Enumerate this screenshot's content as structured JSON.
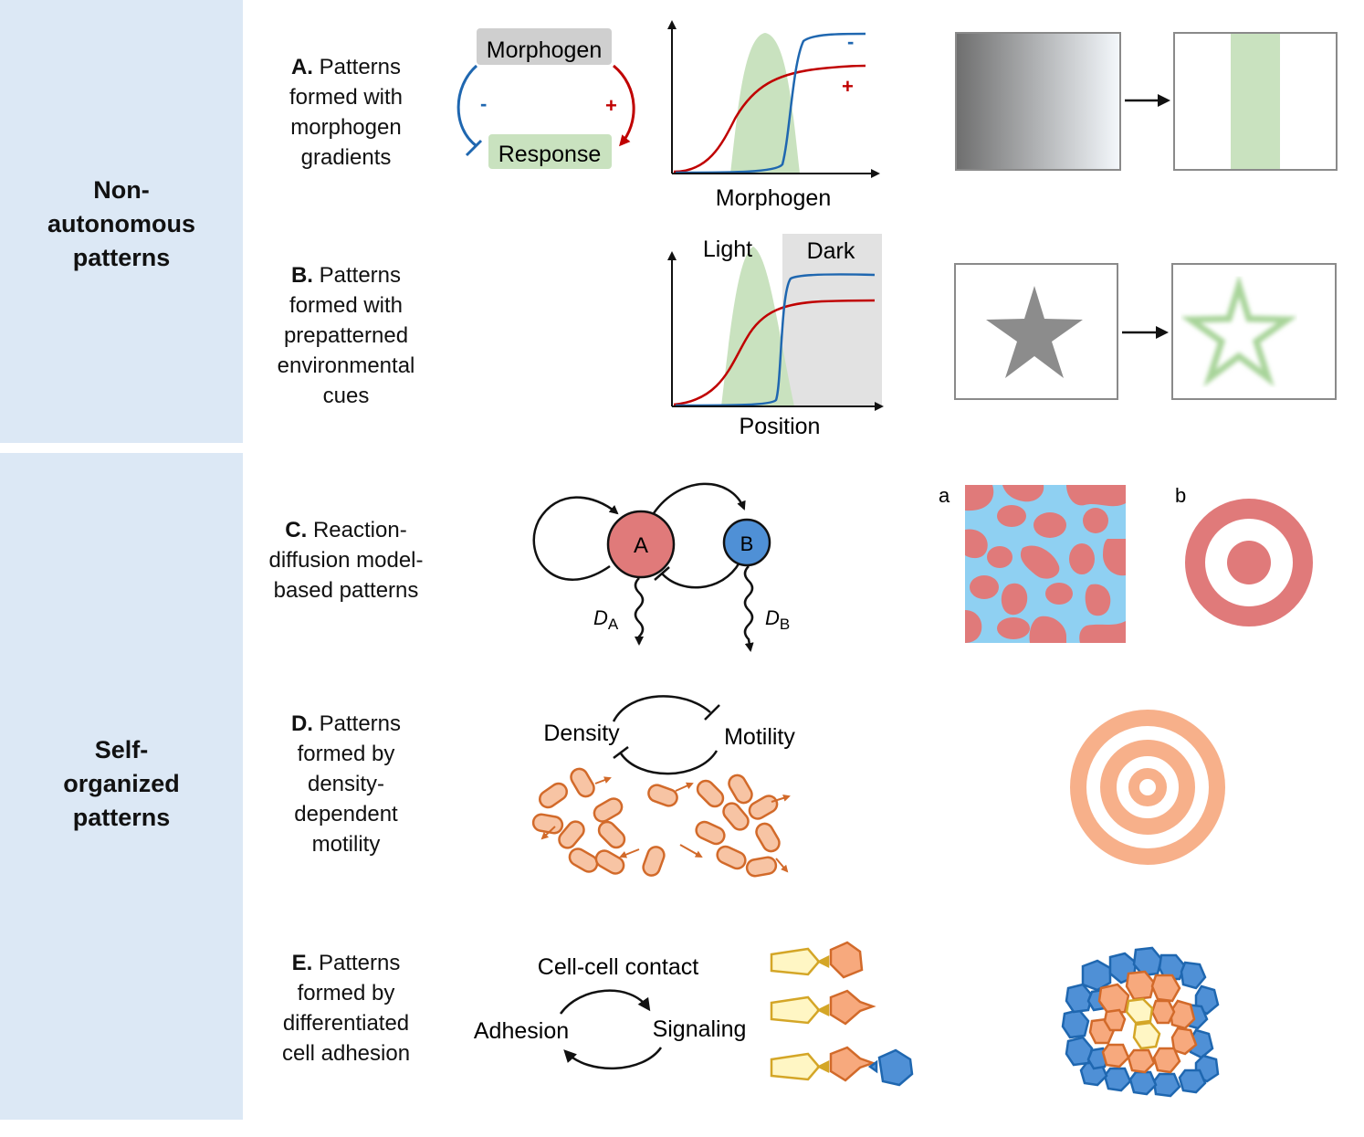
{
  "groups": {
    "non_autonomous": [
      "Non-",
      "autonomous",
      "patterns"
    ],
    "self_organized": [
      "Self-",
      "organized",
      "patterns"
    ]
  },
  "rows": {
    "A": {
      "letter": "A.",
      "lines": [
        "Patterns",
        "formed with",
        "morphogen",
        "gradients"
      ]
    },
    "B": {
      "letter": "B.",
      "lines": [
        "Patterns",
        "formed with",
        "prepatterned",
        "environmental",
        "cues"
      ]
    },
    "C": {
      "letter": "C.",
      "lines": [
        "Reaction-",
        "diffusion model-",
        "based patterns"
      ]
    },
    "D": {
      "letter": "D.",
      "lines": [
        "Patterns",
        "formed by",
        "density-",
        "dependent",
        "motility"
      ]
    },
    "E": {
      "letter": "E.",
      "lines": [
        "Patterns",
        "formed by",
        "differentiated",
        "cell adhesion"
      ]
    }
  },
  "diagram_A": {
    "morphogen": "Morphogen",
    "response": "Response",
    "minus": "-",
    "plus": "+",
    "xlabel": "Morphogen",
    "curve_minus": "-",
    "curve_plus": "+"
  },
  "diagram_B": {
    "light": "Light",
    "dark": "Dark",
    "xlabel": "Position"
  },
  "diagram_C": {
    "node_a": "A",
    "node_b": "B",
    "da_main": "D",
    "da_sub": "A",
    "db_main": "D",
    "db_sub": "B",
    "panel_a": "a",
    "panel_b": "b"
  },
  "diagram_D": {
    "density": "Density",
    "motility": "Motility"
  },
  "diagram_E": {
    "contact": "Cell-cell contact",
    "adhesion": "Adhesion",
    "signaling": "Signaling"
  },
  "colors": {
    "band": "#dce8f5",
    "red": "#c00000",
    "blue": "#1f67b0",
    "green": "#c9e2bf",
    "node_a": "#e07a7a",
    "node_b": "#4f90d6",
    "cell_orange": "#f7b08a",
    "cell_stroke": "#d26a2a",
    "target_pink": "#e07a7a",
    "rings_orange": "#f7b08a",
    "cyan": "#8fd0f2"
  }
}
